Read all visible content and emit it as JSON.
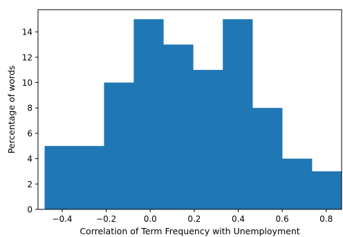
{
  "chart_data": {
    "type": "bar",
    "subtype": "histogram",
    "bins": [
      {
        "x0": -0.48,
        "x1": -0.345,
        "value": 5
      },
      {
        "x0": -0.345,
        "x1": -0.21,
        "value": 5
      },
      {
        "x0": -0.21,
        "x1": -0.075,
        "value": 10
      },
      {
        "x0": -0.075,
        "x1": 0.06,
        "value": 15
      },
      {
        "x0": 0.06,
        "x1": 0.195,
        "value": 13
      },
      {
        "x0": 0.195,
        "x1": 0.33,
        "value": 11
      },
      {
        "x0": 0.33,
        "x1": 0.465,
        "value": 15
      },
      {
        "x0": 0.465,
        "x1": 0.6,
        "value": 8
      },
      {
        "x0": 0.6,
        "x1": 0.735,
        "value": 4
      },
      {
        "x0": 0.735,
        "x1": 0.87,
        "value": 3
      }
    ],
    "title": "",
    "xlabel": "Correlation of Term Frequency with Unemployment",
    "ylabel": "Percentage of words",
    "xlim": [
      -0.51,
      0.87
    ],
    "ylim": [
      0,
      15.75
    ],
    "xticks": [
      -0.4,
      -0.2,
      0.0,
      0.2,
      0.4,
      0.6,
      0.8
    ],
    "xtick_labels": [
      "−0.4",
      "−0.2",
      "0.0",
      "0.2",
      "0.4",
      "0.6",
      "0.8"
    ],
    "yticks": [
      0,
      2,
      4,
      6,
      8,
      10,
      12,
      14
    ],
    "ytick_labels": [
      "0",
      "2",
      "4",
      "6",
      "8",
      "10",
      "12",
      "14"
    ],
    "bar_color": "#1f77b4",
    "grid": false
  }
}
